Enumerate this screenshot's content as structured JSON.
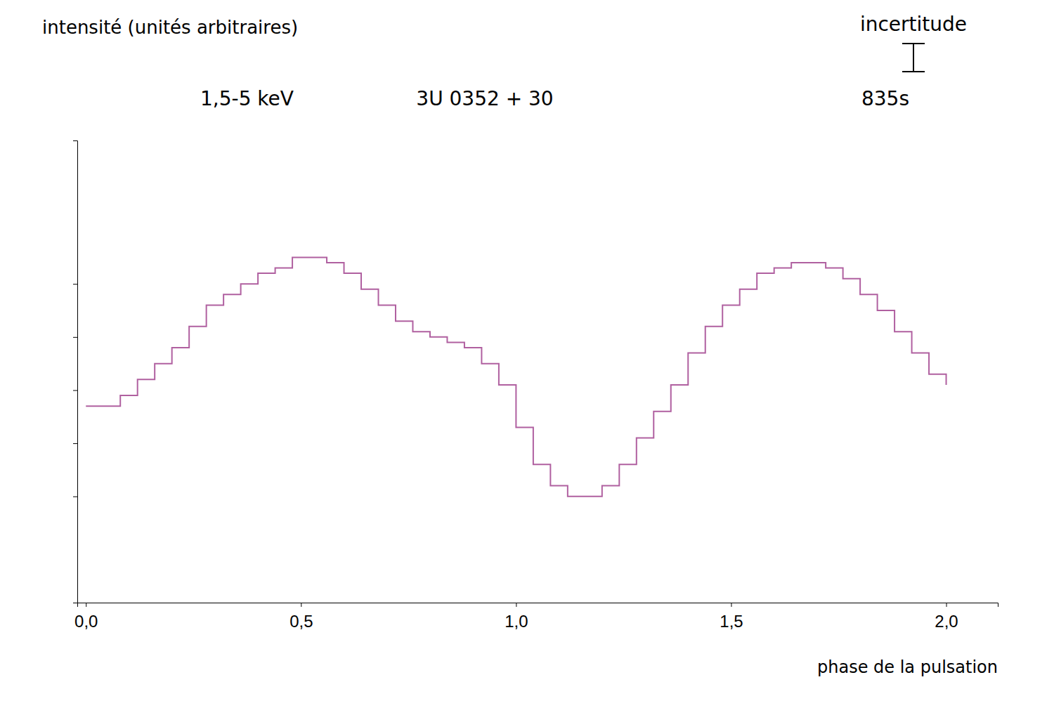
{
  "chart_data": {
    "type": "step",
    "x_label": "phase de la pulsation",
    "y_label": "intensité (unités arbitraires)",
    "annotations": [
      "1,5-5 keV",
      "3U 0352 + 30",
      "835s",
      "incertitude"
    ],
    "x": [
      0.0,
      0.04,
      0.08,
      0.12,
      0.16,
      0.2,
      0.24,
      0.28,
      0.32,
      0.36,
      0.4,
      0.44,
      0.48,
      0.52,
      0.56,
      0.6,
      0.64,
      0.68,
      0.72,
      0.76,
      0.8,
      0.84,
      0.88,
      0.92,
      0.96,
      1.0,
      1.04,
      1.08,
      1.12,
      1.16,
      1.2,
      1.24,
      1.28,
      1.32,
      1.36,
      1.4,
      1.44,
      1.48,
      1.52,
      1.56,
      1.6,
      1.64,
      1.68,
      1.72,
      1.76,
      1.8,
      1.84,
      1.88,
      1.92,
      1.96,
      2.0
    ],
    "values": [
      0.42,
      0.42,
      0.44,
      0.47,
      0.5,
      0.53,
      0.57,
      0.61,
      0.63,
      0.65,
      0.67,
      0.68,
      0.7,
      0.7,
      0.69,
      0.67,
      0.64,
      0.61,
      0.58,
      0.56,
      0.55,
      0.54,
      0.53,
      0.5,
      0.46,
      0.38,
      0.31,
      0.27,
      0.25,
      0.25,
      0.27,
      0.31,
      0.36,
      0.41,
      0.46,
      0.52,
      0.57,
      0.61,
      0.64,
      0.67,
      0.68,
      0.69,
      0.69,
      0.68,
      0.66,
      0.63,
      0.6,
      0.56,
      0.52,
      0.48,
      0.46
    ],
    "color": "#b060a0",
    "xlim": [
      -0.02,
      2.12
    ],
    "ylim": [
      0.05,
      0.92
    ],
    "xticks": [
      {
        "value": 0.0,
        "label": "0,0"
      },
      {
        "value": 0.5,
        "label": "0,5"
      },
      {
        "value": 1.0,
        "label": "1,0"
      },
      {
        "value": 1.5,
        "label": "1,5"
      },
      {
        "value": 2.0,
        "label": "2,0"
      }
    ],
    "yticks": [
      0.25,
      0.35,
      0.45,
      0.55,
      0.65
    ],
    "tick_labels": "x",
    "grid": false
  }
}
